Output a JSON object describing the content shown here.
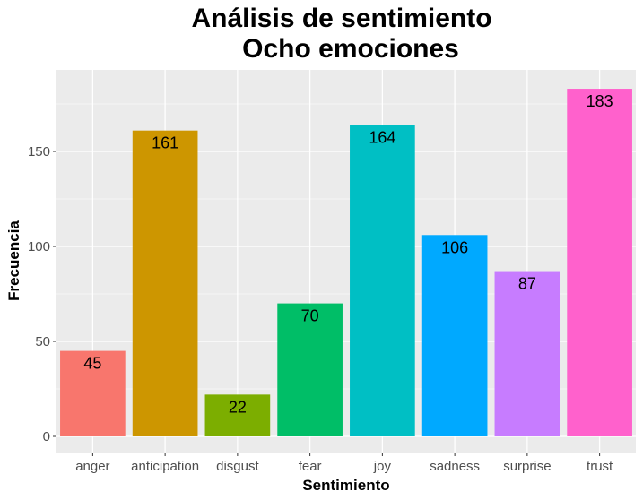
{
  "chart_data": {
    "type": "bar",
    "title": "Análisis de sentimiento",
    "subtitle": "Ocho emociones",
    "xlabel": "Sentimiento",
    "ylabel": "Frecuencia",
    "categories": [
      "anger",
      "anticipation",
      "disgust",
      "fear",
      "joy",
      "sadness",
      "surprise",
      "trust"
    ],
    "values": [
      45,
      161,
      22,
      70,
      164,
      106,
      87,
      183
    ],
    "data_labels": [
      "45",
      "161",
      "22",
      "70",
      "164",
      "106",
      "87",
      "183"
    ],
    "colors": [
      "#F8766D",
      "#CD9600",
      "#7CAE00",
      "#00BE67",
      "#00BFC4",
      "#00A9FF",
      "#C77CFF",
      "#FF61CC"
    ],
    "y_ticks": [
      0,
      50,
      100,
      150
    ],
    "y_tick_labels": [
      "0",
      "50",
      "100",
      "150"
    ],
    "ylim": [
      0,
      192
    ],
    "grid": true,
    "legend": "none",
    "panel_background": "#EBEBEB",
    "grid_color": "#FFFFFF"
  }
}
